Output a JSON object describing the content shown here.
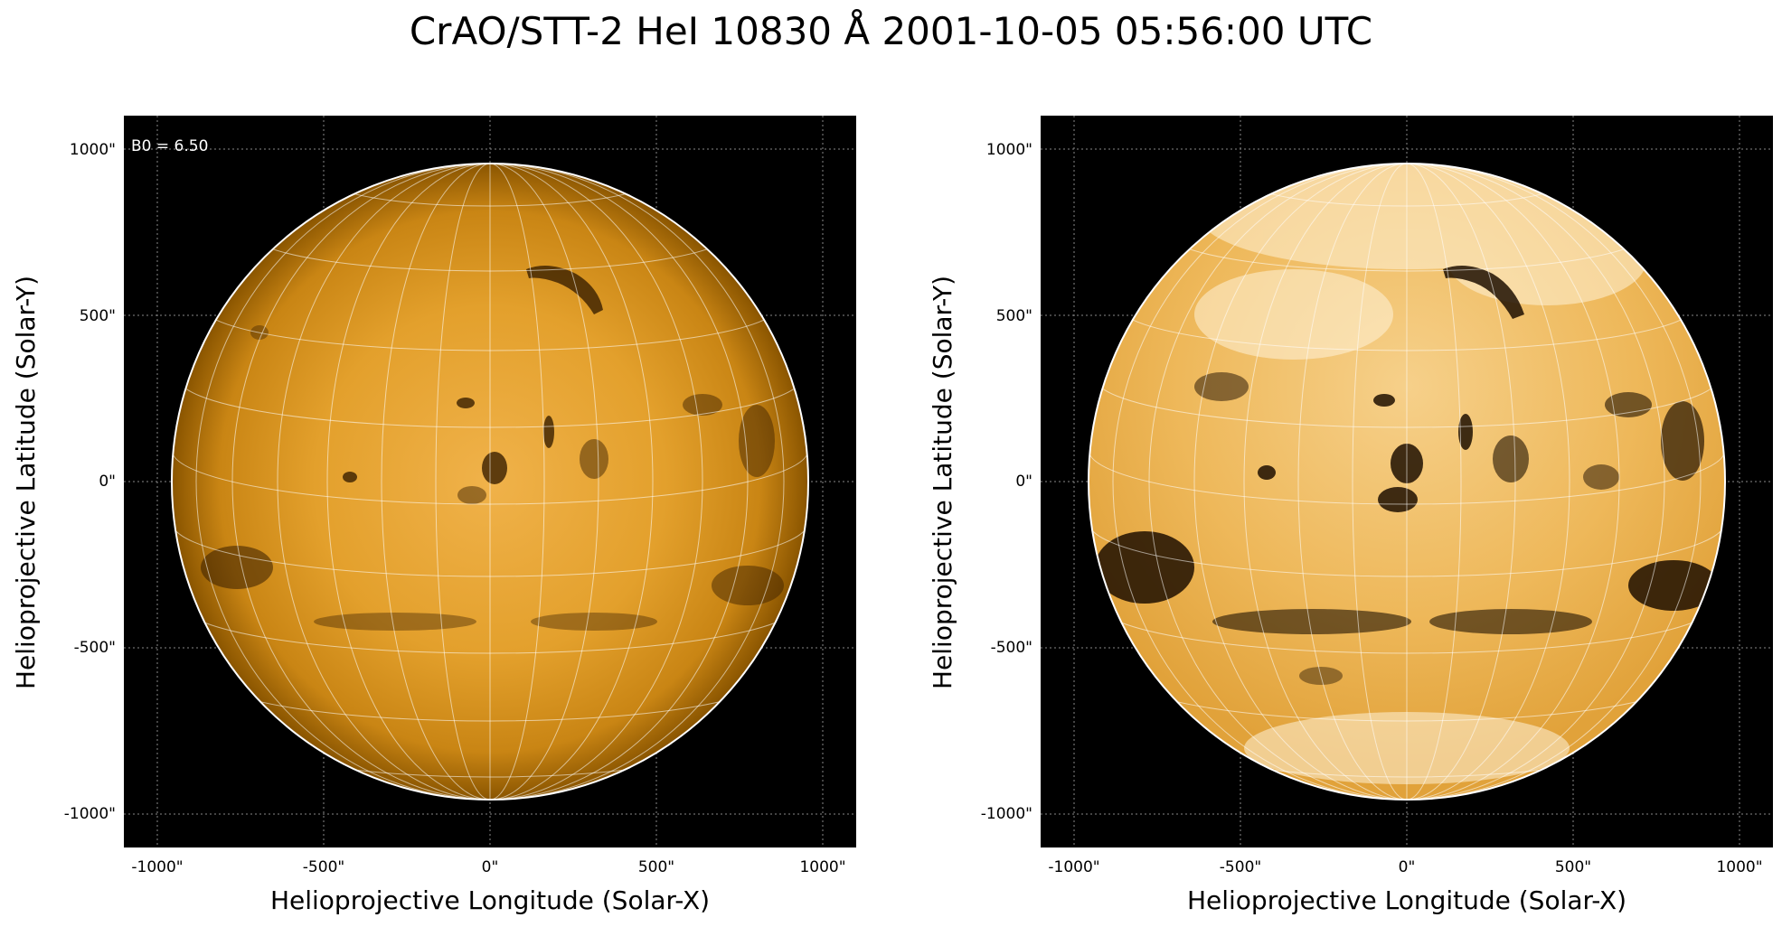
{
  "figure": {
    "title": "CrAO/STT-2 HeI 10830 Å 2001-10-05 05:56:00 UTC"
  },
  "colors": {
    "background": "#000000",
    "disk_light": "#f6c86a",
    "disk_base": "#d98f14",
    "disk_dark": "#5a3300",
    "grid": "#ffffff"
  },
  "left_panel": {
    "annotation": "B0 = 6.50",
    "xlabel": "Helioprojective Longitude (Solar-X)",
    "ylabel": "Helioprojective Latitude (Solar-Y)",
    "xticks": [
      "-1000\"",
      "-500\"",
      "0\"",
      "500\"",
      "1000\""
    ],
    "yticks": [
      "1000\"",
      "500\"",
      "0\"",
      "-500\"",
      "-1000\""
    ]
  },
  "right_panel": {
    "xlabel": "Helioprojective Longitude (Solar-X)",
    "ylabel": "Helioprojective Latitude (Solar-Y)",
    "xticks": [
      "-1000\"",
      "-500\"",
      "0\"",
      "500\"",
      "1000\""
    ],
    "yticks": [
      "1000\"",
      "500\"",
      "0\"",
      "-500\"",
      "-1000\""
    ]
  }
}
